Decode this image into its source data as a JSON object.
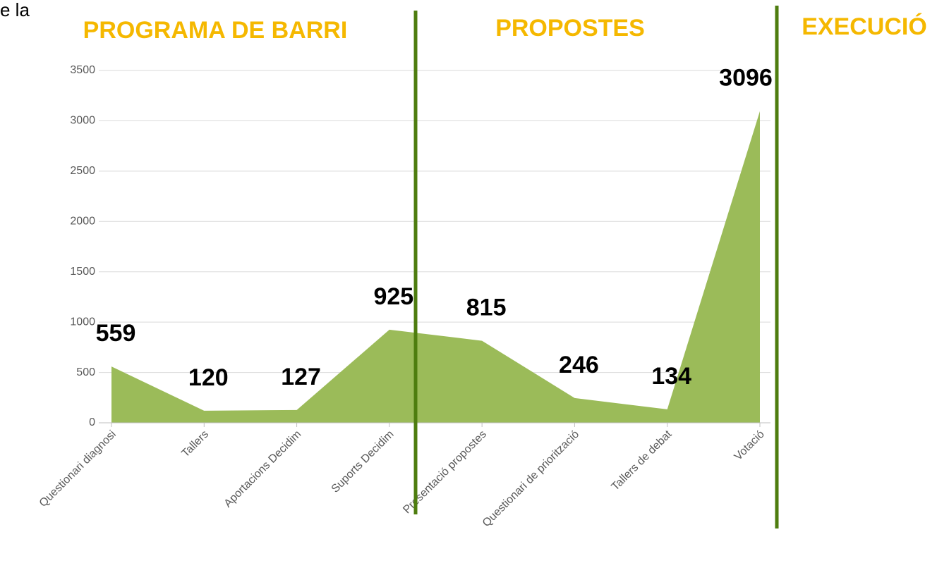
{
  "chart_data": {
    "type": "area",
    "fragment": "e la",
    "annotations": [
      "PROGRAMA DE BARRI",
      "PROPOSTES",
      "EXECUCIÓ"
    ],
    "categories": [
      "Questionari diagnosi",
      "Tallers",
      "Aportacions Decidim",
      "Suports Decidim",
      "Presentació propostes",
      "Questionari de priorització",
      "Tallers de debat",
      "Votació"
    ],
    "values": [
      559,
      120,
      127,
      925,
      815,
      246,
      134,
      3096
    ],
    "color": "#9bbb59",
    "ylim": [
      0,
      3500
    ],
    "yticks": [
      0,
      500,
      1000,
      1500,
      2000,
      2500,
      3000,
      3500
    ],
    "grid": true
  }
}
